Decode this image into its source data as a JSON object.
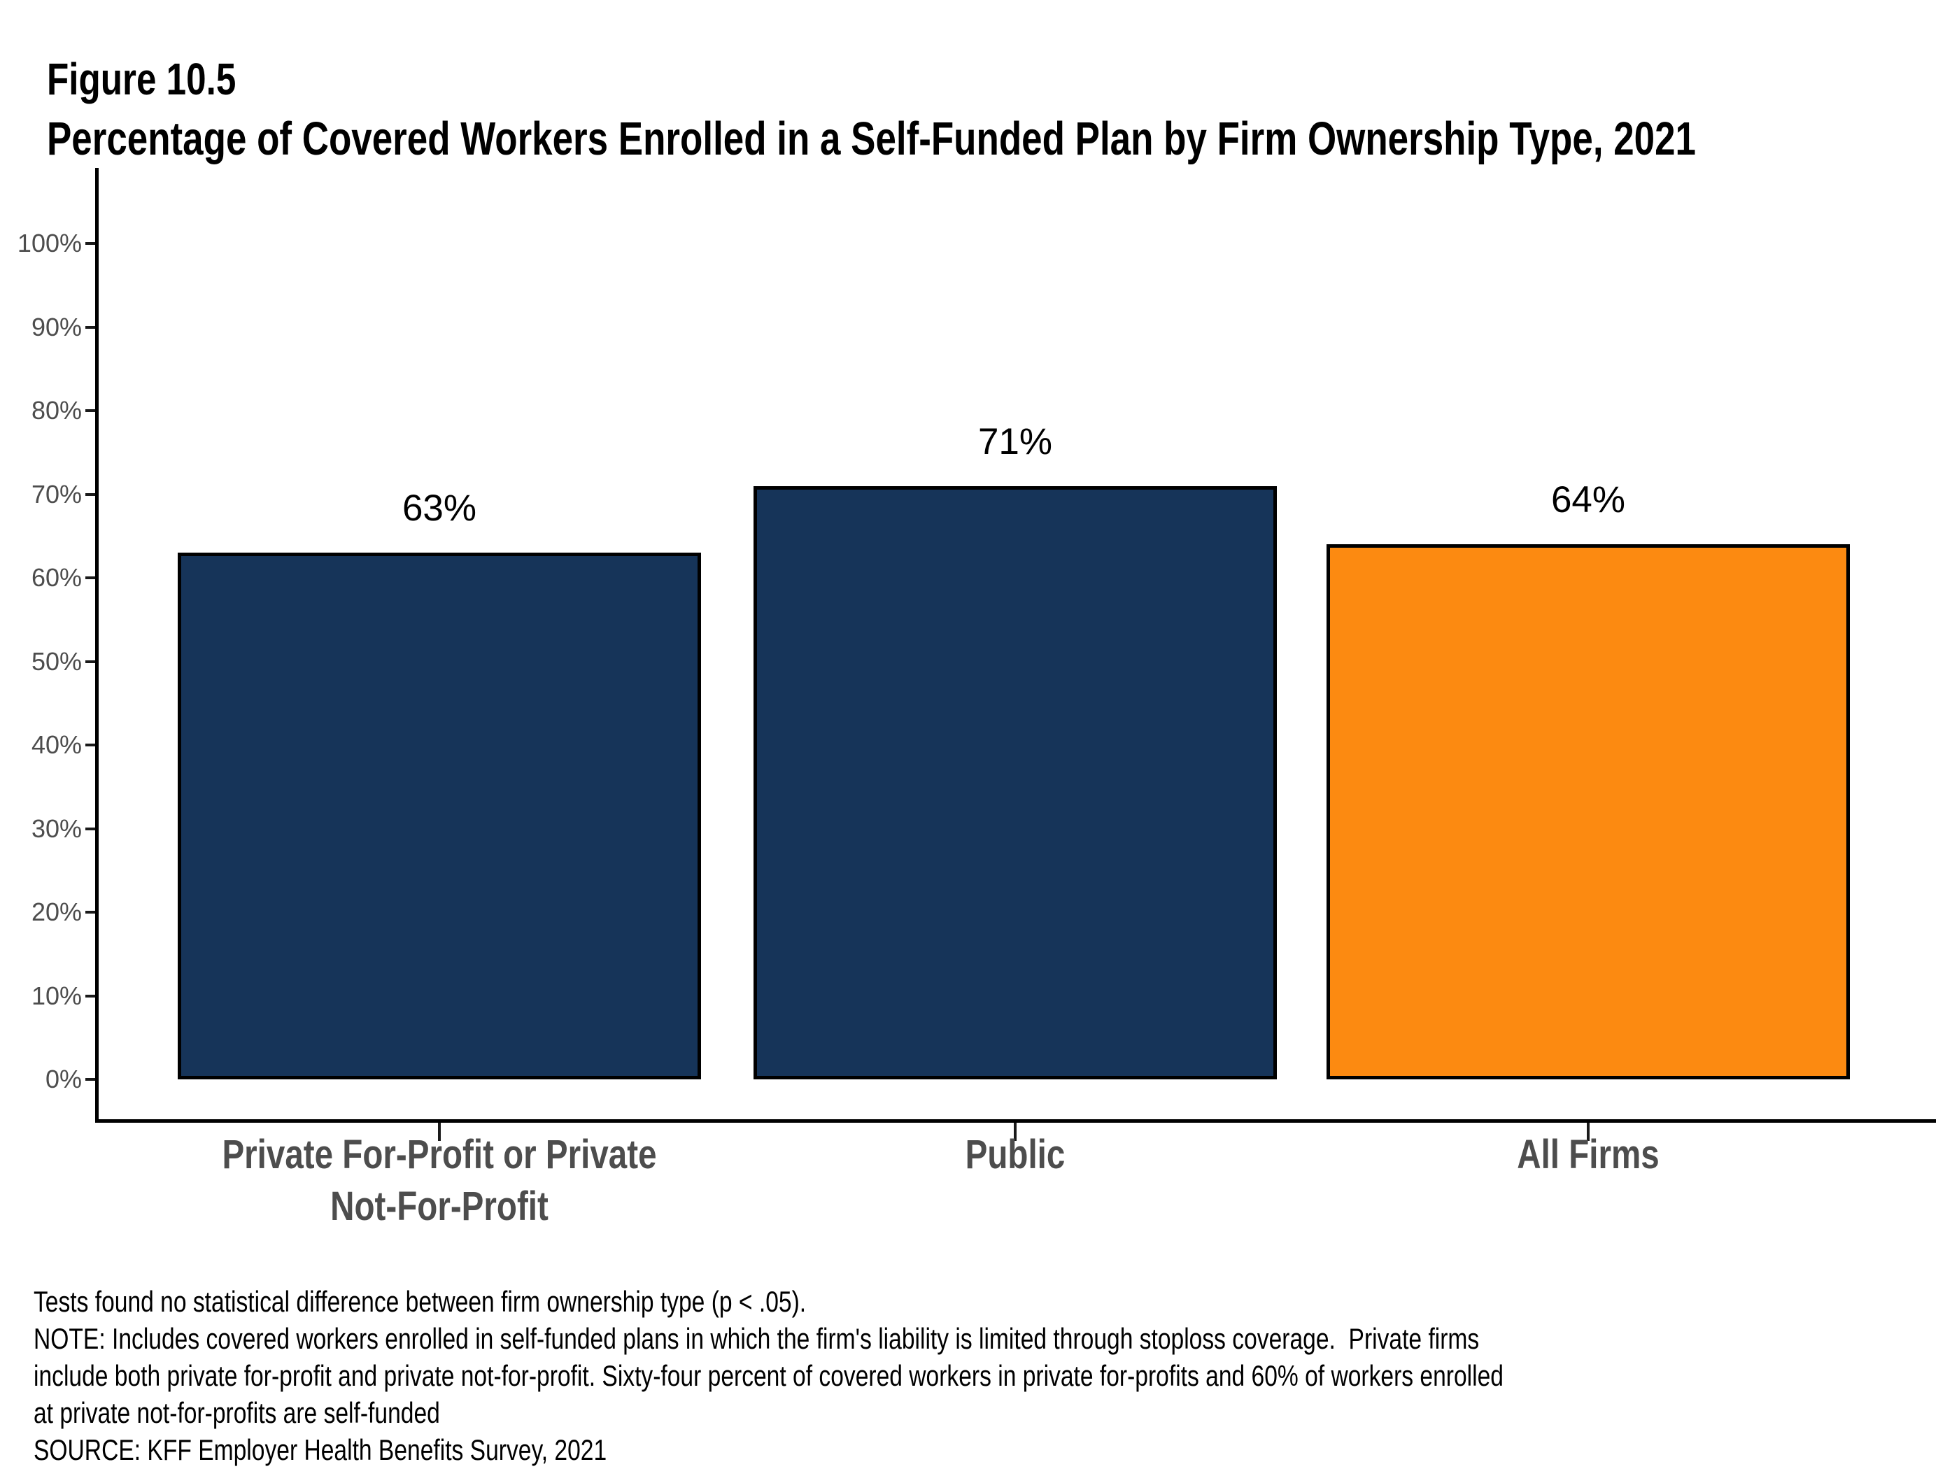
{
  "figure": {
    "label": "Figure 10.5",
    "title": "Percentage of Covered Workers Enrolled in a Self-Funded Plan by Firm Ownership Type, 2021"
  },
  "chart_data": {
    "type": "bar",
    "title": "Percentage of Covered Workers Enrolled in a Self-Funded Plan by Firm Ownership Type, 2021",
    "categories": [
      "Private For-Profit or Private Not-For-Profit",
      "Public",
      "All Firms"
    ],
    "category_display_lines": [
      [
        "Private For-Profit or Private",
        "Not-For-Profit"
      ],
      [
        "Public"
      ],
      [
        "All Firms"
      ]
    ],
    "values": [
      63,
      71,
      64
    ],
    "value_labels": [
      "63%",
      "71%",
      "64%"
    ],
    "bar_colors": [
      "#163459",
      "#163459",
      "#FC8A11"
    ],
    "bar_border_color": "#000000",
    "xlabel": "",
    "ylabel": "",
    "ylim": [
      0,
      100
    ],
    "y_tick_step": 10,
    "y_tick_labels": [
      "0%",
      "10%",
      "20%",
      "30%",
      "40%",
      "50%",
      "60%",
      "70%",
      "80%",
      "90%",
      "100%"
    ],
    "grid": false,
    "legend_position": "none"
  },
  "footnotes": {
    "lines": [
      "Tests found no statistical difference between firm ownership type (p < .05).",
      "NOTE: Includes covered workers enrolled in self-funded plans in which the firm's liability is limited through stoploss coverage.  Private firms",
      "include both private for-profit and private not-for-profit. Sixty-four percent of covered workers in private for-profits and 60% of workers enrolled",
      "at private not-for-profits are self-funded",
      "SOURCE: KFF Employer Health Benefits Survey, 2021"
    ]
  },
  "colors": {
    "bar_navy": "#163459",
    "bar_orange": "#FC8A11",
    "axis": "#000000",
    "y_tick_label": "#4D4D4D",
    "category_label": "#4D4D4D",
    "text": "#000000",
    "background": "#FFFFFF"
  }
}
